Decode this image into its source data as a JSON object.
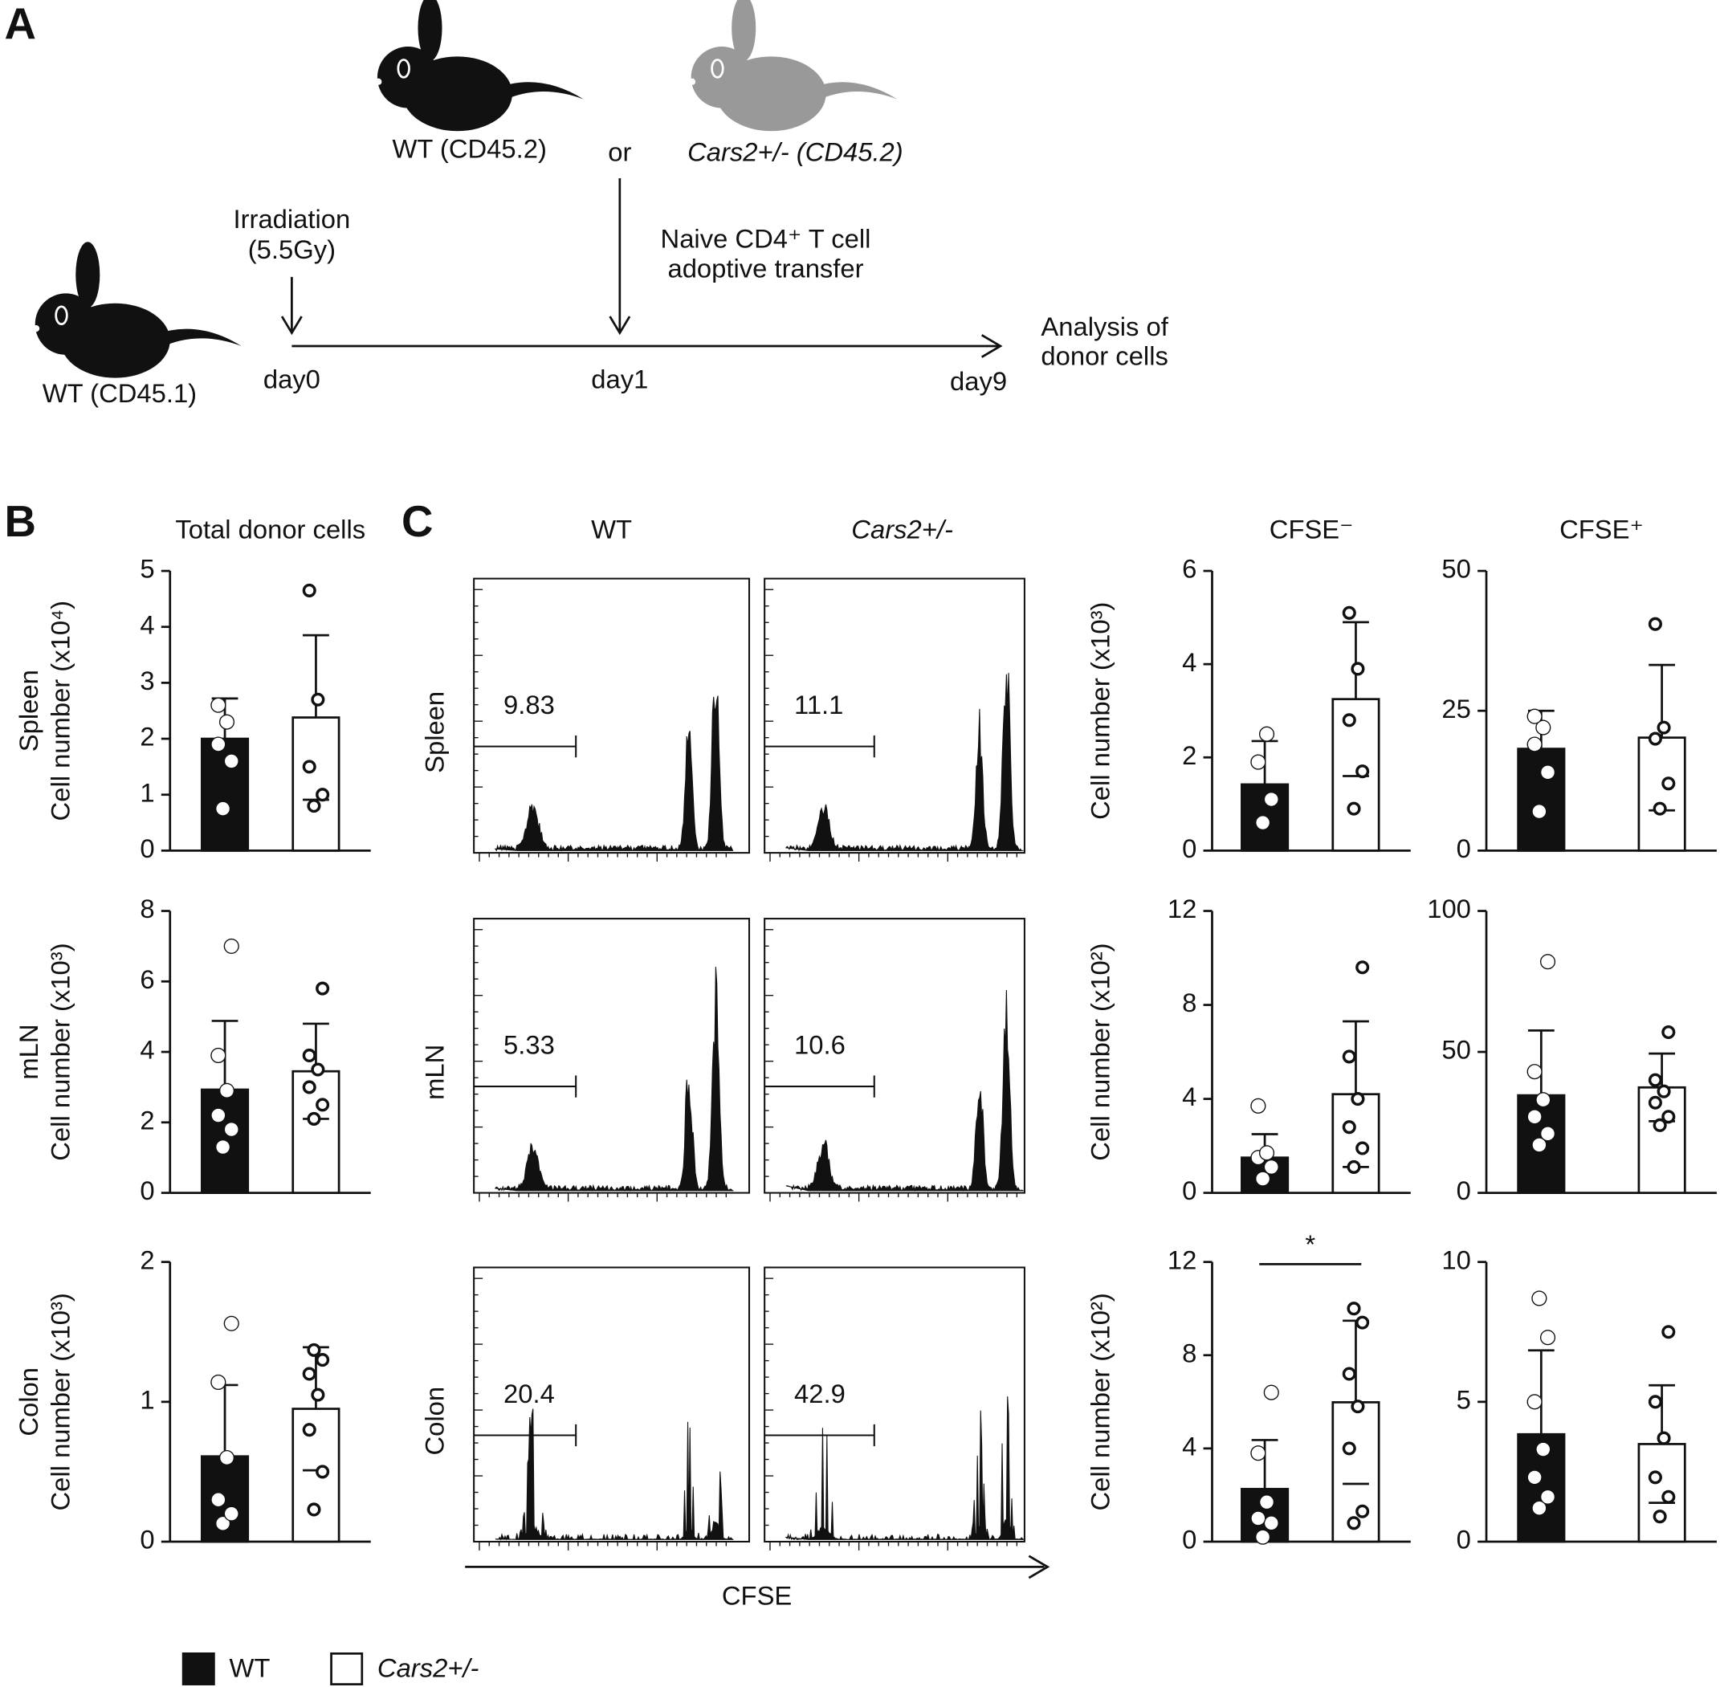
{
  "panel_labels": [
    "A",
    "B",
    "C"
  ],
  "schematic": {
    "donor_wt": "WT (CD45.2)",
    "or": "or",
    "donor_cars": "Cars2+/- (CD45.2)",
    "irradiation": [
      "Irradiation",
      "(5.5Gy)"
    ],
    "transfer": [
      "Naive CD4⁺ T cell",
      "adoptive transfer"
    ],
    "analysis": [
      "Analysis of",
      "donor cells"
    ],
    "recipient": "WT (CD45.1)",
    "days": [
      "day0",
      "day1",
      "day9"
    ]
  },
  "row_labels": [
    "Spleen",
    "mLN",
    "Colon"
  ],
  "legend": [
    {
      "name": "WT",
      "color": "#111111"
    },
    {
      "name": "Cars2+/-",
      "color": "#ffffff"
    }
  ],
  "flow": {
    "columns": [
      "WT",
      "Cars2+/-"
    ],
    "gates": [
      [
        9.83,
        11.1
      ],
      [
        5.33,
        10.6
      ],
      [
        20.4,
        42.9
      ]
    ],
    "xlabel": "CFSE"
  },
  "chart_data": [
    {
      "type": "bar",
      "title": "Total donor cells",
      "ylabel": "Cell number (x10⁴)",
      "ylim": [
        0,
        5
      ],
      "yticks": [
        0,
        1,
        2,
        3,
        4,
        5
      ],
      "values": [
        2.0,
        2.38
      ],
      "errors": [
        0.72,
        1.47
      ],
      "points": [
        [
          0.75,
          1.6,
          1.9,
          2.3,
          2.6
        ],
        [
          0.8,
          1.0,
          1.5,
          2.7,
          4.65
        ]
      ]
    },
    {
      "type": "bar",
      "title": "CFSE⁻",
      "ylabel": "Cell number (x10³)",
      "ylim": [
        0,
        6
      ],
      "yticks": [
        0,
        2,
        4,
        6
      ],
      "values": [
        1.42,
        3.25
      ],
      "errors": [
        0.93,
        1.65
      ],
      "points": [
        [
          0.6,
          1.1,
          1.9,
          2.5
        ],
        [
          0.9,
          1.7,
          2.8,
          3.9,
          5.1
        ]
      ]
    },
    {
      "type": "bar",
      "title": "CFSE⁺",
      "ylim": [
        0,
        50
      ],
      "yticks": [
        0,
        25,
        50
      ],
      "values": [
        18.2,
        20.2
      ],
      "errors": [
        6.8,
        13
      ],
      "points": [
        [
          7,
          14,
          19,
          22,
          24
        ],
        [
          7.5,
          12,
          20,
          22,
          40.5
        ]
      ]
    },
    {
      "type": "bar",
      "ylabel": "Cell number (x10³)",
      "ylim": [
        0,
        8
      ],
      "yticks": [
        0,
        2,
        4,
        6,
        8
      ],
      "values": [
        2.93,
        3.45
      ],
      "errors": [
        1.95,
        1.35
      ],
      "points": [
        [
          1.3,
          1.8,
          2.2,
          2.9,
          3.9,
          7.0
        ],
        [
          2.1,
          2.5,
          3.0,
          3.5,
          3.9,
          5.8
        ]
      ]
    },
    {
      "type": "bar",
      "ylabel": "Cell number (x10²)",
      "ylim": [
        0,
        12
      ],
      "yticks": [
        0,
        4,
        8,
        12
      ],
      "values": [
        1.5,
        4.2
      ],
      "errors": [
        1.0,
        3.1
      ],
      "points": [
        [
          0.6,
          1.1,
          1.5,
          1.7,
          3.7
        ],
        [
          1.1,
          1.9,
          2.8,
          4.0,
          5.8,
          9.6
        ]
      ]
    },
    {
      "type": "bar",
      "ylim": [
        0,
        100
      ],
      "yticks": [
        0,
        50,
        100
      ],
      "values": [
        34.6,
        37.4
      ],
      "errors": [
        23,
        12
      ],
      "points": [
        [
          17,
          21,
          27,
          33,
          43,
          82
        ],
        [
          24,
          27,
          32,
          36,
          40,
          57
        ]
      ]
    },
    {
      "type": "bar",
      "ylabel": "Cell number (x10³)",
      "ylim": [
        0,
        2
      ],
      "yticks": [
        0,
        1,
        2
      ],
      "values": [
        0.61,
        0.95
      ],
      "errors": [
        0.51,
        0.44
      ],
      "points": [
        [
          0.13,
          0.2,
          0.3,
          0.6,
          1.14,
          1.56
        ],
        [
          0.23,
          0.5,
          0.8,
          1.05,
          1.2,
          1.3,
          1.37
        ]
      ]
    },
    {
      "type": "bar",
      "ylabel": "Cell number (x10²)",
      "ylim": [
        0,
        12
      ],
      "yticks": [
        0,
        4,
        8,
        12
      ],
      "annotation": "*",
      "values": [
        2.26,
        5.98
      ],
      "errors": [
        2.1,
        3.5
      ],
      "points": [
        [
          0.2,
          0.8,
          1.0,
          1.7,
          3.8,
          6.4
        ],
        [
          0.8,
          1.3,
          4.0,
          5.8,
          7.2,
          9.4,
          10.0
        ]
      ]
    },
    {
      "type": "bar",
      "ylim": [
        0,
        10
      ],
      "yticks": [
        0,
        5,
        10
      ],
      "values": [
        3.84,
        3.49
      ],
      "errors": [
        3.0,
        2.1
      ],
      "points": [
        [
          1.2,
          1.6,
          2.3,
          3.3,
          5.0,
          7.3,
          8.7
        ],
        [
          0.9,
          1.6,
          2.3,
          3.7,
          5.0,
          7.5
        ]
      ]
    }
  ]
}
